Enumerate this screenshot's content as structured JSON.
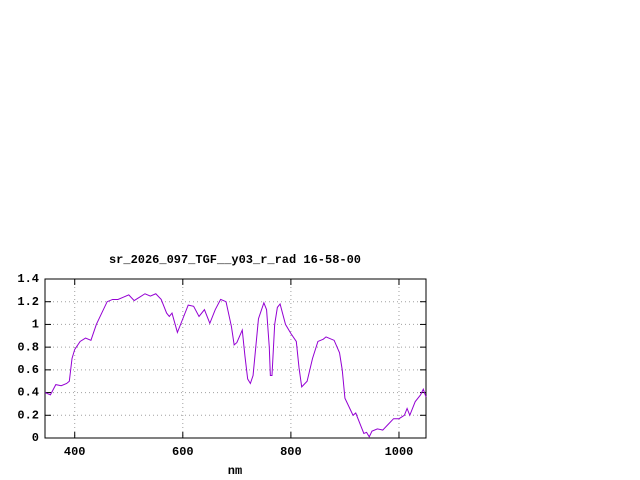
{
  "chart_data": {
    "type": "line",
    "title": "sr_2026_097_TGF__y03_r_rad 16-58-00",
    "x_label": "nm",
    "x": [
      345,
      355,
      365,
      375,
      385,
      390,
      395,
      400,
      410,
      420,
      430,
      440,
      450,
      460,
      470,
      480,
      490,
      500,
      510,
      520,
      530,
      540,
      550,
      560,
      570,
      575,
      580,
      590,
      600,
      610,
      620,
      630,
      640,
      650,
      660,
      670,
      680,
      690,
      695,
      700,
      710,
      715,
      720,
      725,
      730,
      740,
      750,
      755,
      760,
      762,
      765,
      770,
      775,
      780,
      790,
      800,
      810,
      815,
      820,
      830,
      840,
      850,
      860,
      865,
      870,
      880,
      890,
      895,
      900,
      910,
      915,
      920,
      930,
      935,
      940,
      945,
      950,
      960,
      970,
      980,
      990,
      1000,
      1010,
      1015,
      1020,
      1030,
      1040,
      1045,
      1050
    ],
    "series": [
      {
        "color": "#9400d3",
        "values": [
          0.4,
          0.38,
          0.47,
          0.46,
          0.48,
          0.5,
          0.7,
          0.78,
          0.85,
          0.88,
          0.86,
          1.0,
          1.1,
          1.2,
          1.22,
          1.22,
          1.24,
          1.26,
          1.21,
          1.24,
          1.27,
          1.25,
          1.27,
          1.22,
          1.1,
          1.07,
          1.1,
          0.93,
          1.05,
          1.17,
          1.16,
          1.07,
          1.13,
          1.01,
          1.13,
          1.22,
          1.2,
          0.98,
          0.82,
          0.84,
          0.95,
          0.72,
          0.52,
          0.48,
          0.55,
          1.05,
          1.19,
          1.13,
          0.8,
          0.55,
          0.55,
          1.0,
          1.15,
          1.18,
          1.0,
          0.92,
          0.85,
          0.62,
          0.45,
          0.5,
          0.7,
          0.85,
          0.87,
          0.89,
          0.88,
          0.86,
          0.75,
          0.6,
          0.35,
          0.25,
          0.2,
          0.22,
          0.1,
          0.04,
          0.05,
          0.01,
          0.06,
          0.08,
          0.07,
          0.12,
          0.17,
          0.17,
          0.2,
          0.26,
          0.2,
          0.32,
          0.38,
          0.43,
          0.36
        ]
      }
    ],
    "xlim": [
      345,
      1050
    ],
    "xticks": [
      400,
      600,
      800,
      1000
    ],
    "ylim": [
      0,
      1.4
    ],
    "yticks": [
      0,
      0.2,
      0.4,
      0.6,
      0.8,
      1,
      1.2,
      1.4
    ],
    "grid": true
  }
}
